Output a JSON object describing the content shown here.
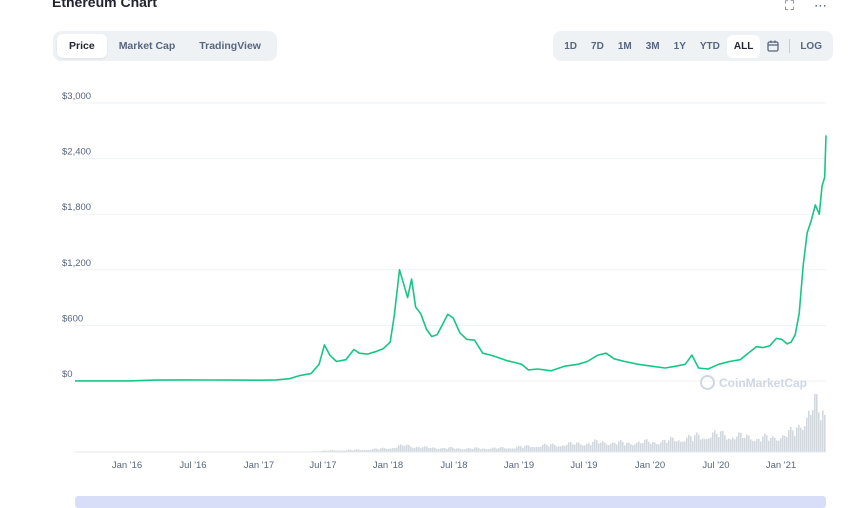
{
  "header": {
    "title": "Ethereum Chart",
    "fullscreen_icon": "fullscreen-icon",
    "more_icon": "more-icon"
  },
  "tabs": [
    {
      "label": "Price",
      "active": true
    },
    {
      "label": "Market Cap",
      "active": false
    },
    {
      "label": "TradingView",
      "active": false
    }
  ],
  "ranges": [
    {
      "label": "1D"
    },
    {
      "label": "7D"
    },
    {
      "label": "1M"
    },
    {
      "label": "3M"
    },
    {
      "label": "1Y"
    },
    {
      "label": "YTD"
    },
    {
      "label": "ALL",
      "active": true
    }
  ],
  "calendar_icon": "calendar-icon",
  "log_label": "LOG",
  "watermark": "CoinMarketCap",
  "colors": {
    "line": "#16c784",
    "volume": "#d3d7de",
    "grid": "#eff2f5",
    "axis_text": "#58667e",
    "navigator": "#d8def8"
  },
  "chart_data": {
    "type": "line",
    "title": "Ethereum Chart",
    "xlabel": "",
    "ylabel": "",
    "y_ticks": [
      "$3,000",
      "$2,400",
      "$1,800",
      "$1,200",
      "$600",
      "$0"
    ],
    "y_tick_values": [
      3000,
      2400,
      1800,
      1200,
      600,
      0
    ],
    "x_ticks": [
      "Jan '16",
      "Jul '16",
      "Jan '17",
      "Jul '17",
      "Jan '18",
      "Jul '18",
      "Jan '19",
      "Jul '19",
      "Jan '20",
      "Jul '20",
      "Jan '21"
    ],
    "ylim": [
      0,
      3000
    ],
    "xlim": [
      2015.6,
      2021.2
    ],
    "grid": true,
    "series": [
      {
        "x": [
          2015.6,
          2015.75,
          2016.0,
          2016.2,
          2016.4,
          2016.6,
          2016.8,
          2017.0,
          2017.1,
          2017.2,
          2017.28,
          2017.36,
          2017.42,
          2017.46,
          2017.5,
          2017.55,
          2017.62,
          2017.68,
          2017.72,
          2017.78,
          2017.85,
          2017.9,
          2017.95,
          2017.98,
          2018.02,
          2018.05,
          2018.08,
          2018.11,
          2018.14,
          2018.18,
          2018.22,
          2018.26,
          2018.3,
          2018.34,
          2018.38,
          2018.42,
          2018.47,
          2018.52,
          2018.58,
          2018.64,
          2018.7,
          2018.76,
          2018.82,
          2018.88,
          2018.93,
          2018.98,
          2019.05,
          2019.15,
          2019.25,
          2019.35,
          2019.42,
          2019.5,
          2019.56,
          2019.62,
          2019.7,
          2019.8,
          2019.9,
          2020.0,
          2020.08,
          2020.15,
          2020.2,
          2020.25,
          2020.32,
          2020.4,
          2020.48,
          2020.56,
          2020.62,
          2020.68,
          2020.73,
          2020.78,
          2020.83,
          2020.87,
          2020.91,
          2020.94,
          2020.97,
          2021.0,
          2021.03,
          2021.06,
          2021.09,
          2021.12,
          2021.15,
          2021.17,
          2021.19,
          2021.2
        ],
        "y": [
          1,
          1,
          1,
          10,
          12,
          11,
          10,
          9,
          12,
          25,
          60,
          80,
          180,
          390,
          280,
          210,
          230,
          340,
          300,
          290,
          320,
          350,
          420,
          700,
          1200,
          1050,
          900,
          1100,
          800,
          720,
          560,
          480,
          500,
          610,
          720,
          680,
          520,
          450,
          440,
          300,
          280,
          250,
          220,
          200,
          180,
          120,
          130,
          110,
          160,
          180,
          210,
          280,
          300,
          240,
          210,
          180,
          160,
          140,
          160,
          180,
          280,
          140,
          130,
          180,
          210,
          230,
          300,
          370,
          360,
          380,
          460,
          450,
          400,
          420,
          500,
          730,
          1250,
          1600,
          1730,
          1900,
          1800,
          2100,
          2200,
          2650
        ],
        "name": ""
      }
    ],
    "volume_series": {
      "x": [
        2015.6,
        2016.0,
        2016.5,
        2017.0,
        2017.3,
        2017.5,
        2017.8,
        2018.0,
        2018.05,
        2018.2,
        2018.5,
        2018.8,
        2019.0,
        2019.3,
        2019.5,
        2019.7,
        2020.0,
        2020.2,
        2020.4,
        2020.6,
        2020.8,
        2020.95,
        2021.0,
        2021.05,
        2021.08,
        2021.12,
        2021.15,
        2021.18,
        2021.2
      ],
      "y": [
        0,
        0,
        0,
        0,
        1,
        3,
        5,
        10,
        14,
        9,
        7,
        8,
        12,
        16,
        20,
        18,
        22,
        30,
        36,
        30,
        28,
        40,
        55,
        70,
        85,
        95,
        75,
        88,
        60
      ]
    }
  }
}
